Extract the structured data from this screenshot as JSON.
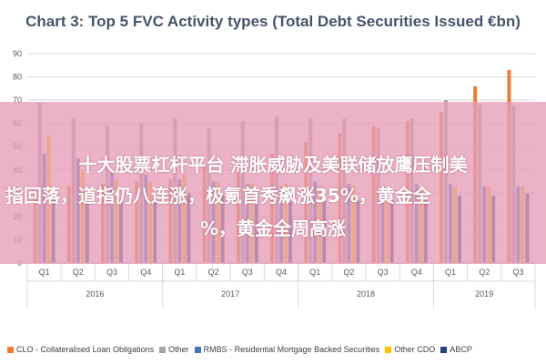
{
  "banner": {
    "line1": "十大股票杠杆平台 滞胀威胁及美联储放鹰压制美",
    "line2": "指回落，道指仍八连涨，极氪首秀飙涨35%，黄金全",
    "line3": "%，黄金全周高涨"
  },
  "chart_data": {
    "type": "bar",
    "title": "Chart 3: Top 5 FVC Activity types (Total Debt Securities Issued €bn)",
    "xlabel": "",
    "ylabel": "",
    "ylim": [
      0,
      90
    ],
    "yticks": [
      0,
      10,
      20,
      30,
      40,
      50,
      60,
      70,
      80,
      90
    ],
    "grid": true,
    "legend_position": "bottom",
    "categories": [
      "Q1",
      "Q2",
      "Q3",
      "Q4",
      "Q1",
      "Q2",
      "Q3",
      "Q4",
      "Q1",
      "Q2",
      "Q3",
      "Q4",
      "Q1",
      "Q2",
      "Q3"
    ],
    "groups": [
      {
        "label": "2016",
        "count": 4
      },
      {
        "label": "2017",
        "count": 4
      },
      {
        "label": "2018",
        "count": 4
      },
      {
        "label": "2019",
        "count": 3
      }
    ],
    "series": [
      {
        "name": "CLO - Collateralised Loan Obligations",
        "color": "#ed7d31",
        "values": [
          31,
          33,
          34,
          35,
          36,
          42,
          45,
          47,
          52,
          56,
          59,
          61,
          65,
          76,
          83
        ]
      },
      {
        "name": "Other",
        "color": "#a5a5a5",
        "values": [
          69,
          62,
          59,
          60,
          62,
          58,
          61,
          63,
          62,
          62,
          58,
          62,
          70,
          68,
          68
        ]
      },
      {
        "name": "RMBS - Residential Mortgage Backed Securities",
        "color": "#4472c4",
        "values": [
          47,
          45,
          40,
          38,
          36,
          35,
          34,
          33,
          35,
          34,
          33,
          34,
          34,
          33,
          33
        ]
      },
      {
        "name": "Other CDO",
        "color": "#ffc000",
        "values": [
          55,
          40,
          36,
          35,
          38,
          35,
          34,
          34,
          33,
          33,
          31,
          32,
          33,
          33,
          33
        ]
      },
      {
        "name": "ABCP",
        "color": "#264478",
        "values": [
          29,
          28,
          27,
          28,
          30,
          29,
          28,
          29,
          28,
          27,
          27,
          27,
          29,
          29,
          30
        ]
      }
    ]
  }
}
